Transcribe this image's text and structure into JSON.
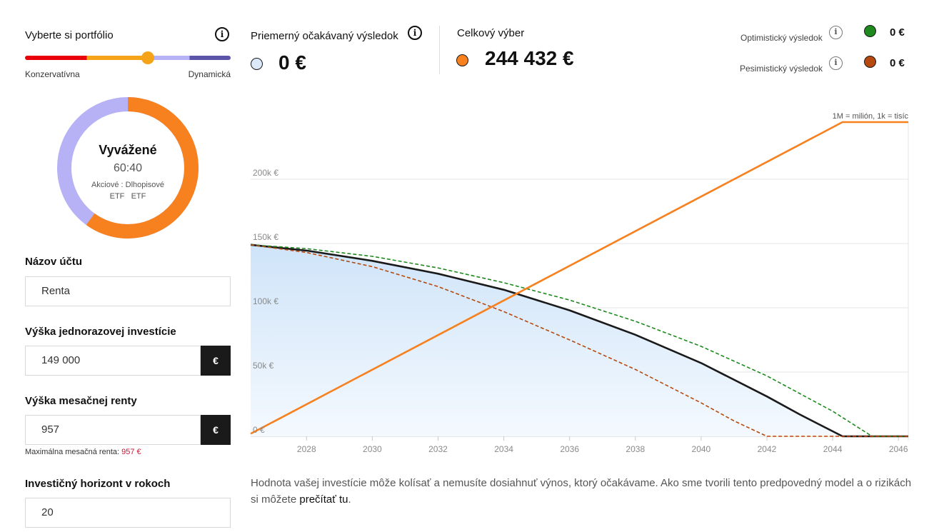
{
  "portfolio": {
    "title": "Vyberte si portfólio",
    "info_icon": "info-icon",
    "risk_min_label": "Konzervatívna",
    "risk_max_label": "Dynamická",
    "name": "Vyvážené",
    "ratio": "60:40",
    "legend_line1": "Akciové : Dlhopisové",
    "legend_line2": "ETF   ETF",
    "stock_share": 0.6,
    "bond_share": 0.4,
    "colors": {
      "stocks": "#f7801f",
      "bonds": "#b7b1f5",
      "slider_thumb": "#f5a318"
    }
  },
  "form": {
    "account_name_label": "Názov účtu",
    "account_name_value": "Renta",
    "lump_sum_label": "Výška jednorazovej investície",
    "lump_sum_value": "149 000",
    "monthly_rent_label": "Výška mesačnej renty",
    "monthly_rent_value": "957",
    "currency_symbol": "€",
    "max_rent_hint": "Maximálna mesačná renta:",
    "max_rent_value": "957 €",
    "horizon_label": "Investičný horizont v rokoch",
    "horizon_value": "20"
  },
  "summary": {
    "avg_label": "Priemerný očakávaný výsledok",
    "avg_value": "0 €",
    "total_label": "Celkový výber",
    "total_value": "244 432 €",
    "optimistic_label": "Optimistický výsledok",
    "optimistic_value": "0 €",
    "pessimistic_label": "Pesimistický výsledok",
    "pessimistic_value": "0 €",
    "colors": {
      "avg": "#dbe9fb",
      "total": "#f7801f",
      "optimistic": "#1e8a1e",
      "pessimistic": "#b5490f"
    }
  },
  "chart_data": {
    "type": "line",
    "note": "1M = milión, 1k = tisíc",
    "xlim": [
      2026.3,
      2046.3
    ],
    "ylim": [
      0,
      245000
    ],
    "x_ticks": [
      2028,
      2030,
      2032,
      2034,
      2036,
      2038,
      2040,
      2042,
      2044,
      2046
    ],
    "y_ticks": [
      {
        "value": 0,
        "label": "0 €"
      },
      {
        "value": 50000,
        "label": "50k €"
      },
      {
        "value": 100000,
        "label": "100k €"
      },
      {
        "value": 150000,
        "label": "150k €"
      },
      {
        "value": 200000,
        "label": "200k €"
      }
    ],
    "grid": "horizontal",
    "series": [
      {
        "style": "average",
        "color": "#1a1a1a",
        "x": [
          2026.3,
          2028,
          2030,
          2032,
          2034,
          2036,
          2038,
          2040,
          2042,
          2043,
          2044.3,
          2046.3
        ],
        "values": [
          149000,
          144500,
          136500,
          126500,
          114000,
          98000,
          79000,
          57000,
          31000,
          17000,
          0,
          0
        ]
      },
      {
        "style": "optimistic",
        "color": "#1e8a1e",
        "x": [
          2026.3,
          2028,
          2030,
          2032,
          2034,
          2036,
          2038,
          2040,
          2042,
          2044,
          2045.2,
          2046.3
        ],
        "values": [
          149000,
          146000,
          140000,
          131000,
          119500,
          106000,
          89500,
          70000,
          47000,
          19500,
          0,
          0
        ]
      },
      {
        "style": "pessimistic",
        "color": "#b5490f",
        "x": [
          2026.3,
          2028,
          2030,
          2032,
          2034,
          2036,
          2038,
          2040,
          2041,
          2042,
          2046.3
        ],
        "values": [
          149000,
          143000,
          132000,
          116500,
          97000,
          75000,
          52000,
          26000,
          12000,
          0,
          0
        ]
      },
      {
        "style": "total",
        "color": "#f7801f",
        "x": [
          2026.3,
          2044.3,
          2046.3
        ],
        "values": [
          2000,
          244432,
          244432
        ]
      }
    ]
  },
  "disclaimer": {
    "text": "Hodnota vašej investície môže kolísať a nemusíte dosiahnuť výnos, ktorý očakávame. Ako sme tvorili tento predpovedný model a o rizikách si môžete ",
    "link_text": "prečítať tu",
    "suffix": "."
  }
}
